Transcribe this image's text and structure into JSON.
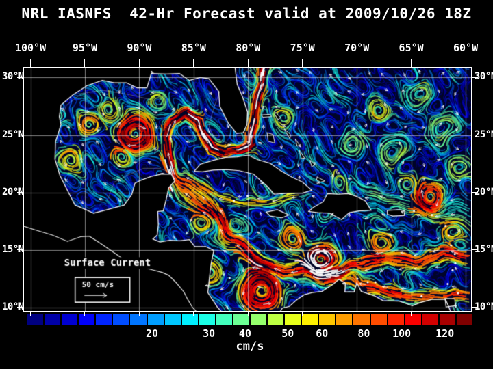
{
  "title": "NRL IASNFS  42-Hr Forecast valid at 2009/10/26 18Z",
  "axes": {
    "lon": [
      {
        "label": "100°W",
        "deg": -100
      },
      {
        "label": "95°W",
        "deg": -95
      },
      {
        "label": "90°W",
        "deg": -90
      },
      {
        "label": "85°W",
        "deg": -85
      },
      {
        "label": "80°W",
        "deg": -80
      },
      {
        "label": "75°W",
        "deg": -75
      },
      {
        "label": "70°W",
        "deg": -70
      },
      {
        "label": "65°W",
        "deg": -65
      },
      {
        "label": "60°W",
        "deg": -60
      }
    ],
    "lat": [
      {
        "label": "30°N",
        "deg": 30
      },
      {
        "label": "25°N",
        "deg": 25
      },
      {
        "label": "20°N",
        "deg": 20
      },
      {
        "label": "15°N",
        "deg": 15
      },
      {
        "label": "10°N",
        "deg": 10
      }
    ]
  },
  "map": {
    "legend_label": "Surface Current",
    "scale_label": "50 cm/s"
  },
  "colorbar": {
    "unit": "cm/s",
    "ticks": [
      {
        "label": "20",
        "pos": 28.0
      },
      {
        "label": "30",
        "pos": 40.8
      },
      {
        "label": "40",
        "pos": 48.9
      },
      {
        "label": "50",
        "pos": 58.5
      },
      {
        "label": "60",
        "pos": 66.2
      },
      {
        "label": "80",
        "pos": 75.6
      },
      {
        "label": "100",
        "pos": 84.1
      },
      {
        "label": "120",
        "pos": 93.8
      }
    ],
    "colors": [
      "#000080",
      "#0000A8",
      "#0000D1",
      "#0000FA",
      "#0024FF",
      "#004DFF",
      "#0075FF",
      "#009EFF",
      "#00C7FF",
      "#00F0FF",
      "#1AFFE6",
      "#42FFBD",
      "#6BFF94",
      "#94FF6B",
      "#BDFF42",
      "#E6FF1A",
      "#FFF000",
      "#FFC700",
      "#FF9E00",
      "#FF7500",
      "#FF4D00",
      "#FF2400",
      "#FA0000",
      "#D10000",
      "#A80000",
      "#800000"
    ]
  },
  "colors": {
    "background": "#000000",
    "ocean": "#000428",
    "coastline": "#ffffff",
    "grid": "#ffffff",
    "text": "#ffffff"
  }
}
